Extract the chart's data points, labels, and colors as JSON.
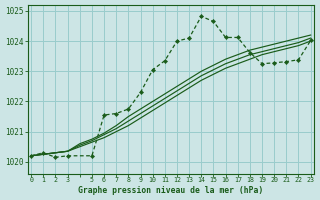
{
  "title": "Graphe pression niveau de la mer (hPa)",
  "bg_color": "#cce5e5",
  "grid_color": "#99cccc",
  "line_color": "#1a5c1a",
  "xlim": [
    -0.3,
    23.3
  ],
  "ylim": [
    1019.6,
    1025.2
  ],
  "yticks": [
    1020,
    1021,
    1022,
    1023,
    1024,
    1025
  ],
  "line1": {
    "x": [
      0,
      1,
      2,
      3,
      4,
      5,
      6,
      7,
      8,
      9,
      10,
      11,
      12,
      13,
      14,
      15,
      16,
      17,
      18,
      19,
      20,
      21,
      22,
      23
    ],
    "y": [
      1020.2,
      1020.25,
      1020.3,
      1020.35,
      1020.5,
      1020.65,
      1020.8,
      1021.0,
      1021.2,
      1021.45,
      1021.7,
      1021.95,
      1022.2,
      1022.45,
      1022.7,
      1022.9,
      1023.1,
      1023.25,
      1023.4,
      1023.55,
      1023.65,
      1023.75,
      1023.85,
      1024.0
    ]
  },
  "line2": {
    "x": [
      0,
      1,
      2,
      3,
      4,
      5,
      6,
      7,
      8,
      9,
      10,
      11,
      12,
      13,
      14,
      15,
      16,
      17,
      18,
      19,
      20,
      21,
      22,
      23
    ],
    "y": [
      1020.2,
      1020.25,
      1020.3,
      1020.35,
      1020.55,
      1020.7,
      1020.9,
      1021.1,
      1021.35,
      1021.6,
      1021.85,
      1022.1,
      1022.35,
      1022.6,
      1022.85,
      1023.05,
      1023.25,
      1023.4,
      1023.55,
      1023.65,
      1023.75,
      1023.85,
      1023.95,
      1024.1
    ]
  },
  "line3": {
    "x": [
      0,
      1,
      2,
      3,
      4,
      5,
      6,
      7,
      8,
      9,
      10,
      11,
      12,
      13,
      14,
      15,
      16,
      17,
      18,
      19,
      20,
      21,
      22,
      23
    ],
    "y": [
      1020.2,
      1020.25,
      1020.3,
      1020.35,
      1020.6,
      1020.75,
      1020.95,
      1021.2,
      1021.5,
      1021.75,
      1022.0,
      1022.25,
      1022.5,
      1022.75,
      1023.0,
      1023.2,
      1023.4,
      1023.55,
      1023.7,
      1023.8,
      1023.9,
      1024.0,
      1024.1,
      1024.2
    ]
  },
  "line_main": {
    "x": [
      0,
      1,
      2,
      3,
      5,
      6,
      7,
      8,
      9,
      10,
      11,
      12,
      13,
      14,
      15,
      16,
      17,
      18,
      19,
      20,
      21,
      22,
      23
    ],
    "y": [
      1020.2,
      1020.3,
      1020.15,
      1020.2,
      1020.2,
      1021.55,
      1021.6,
      1021.75,
      1022.3,
      1023.05,
      1023.35,
      1024.0,
      1024.1,
      1024.82,
      1024.65,
      1024.12,
      1024.12,
      1023.62,
      1023.25,
      1023.28,
      1023.32,
      1023.38,
      1024.02
    ]
  }
}
